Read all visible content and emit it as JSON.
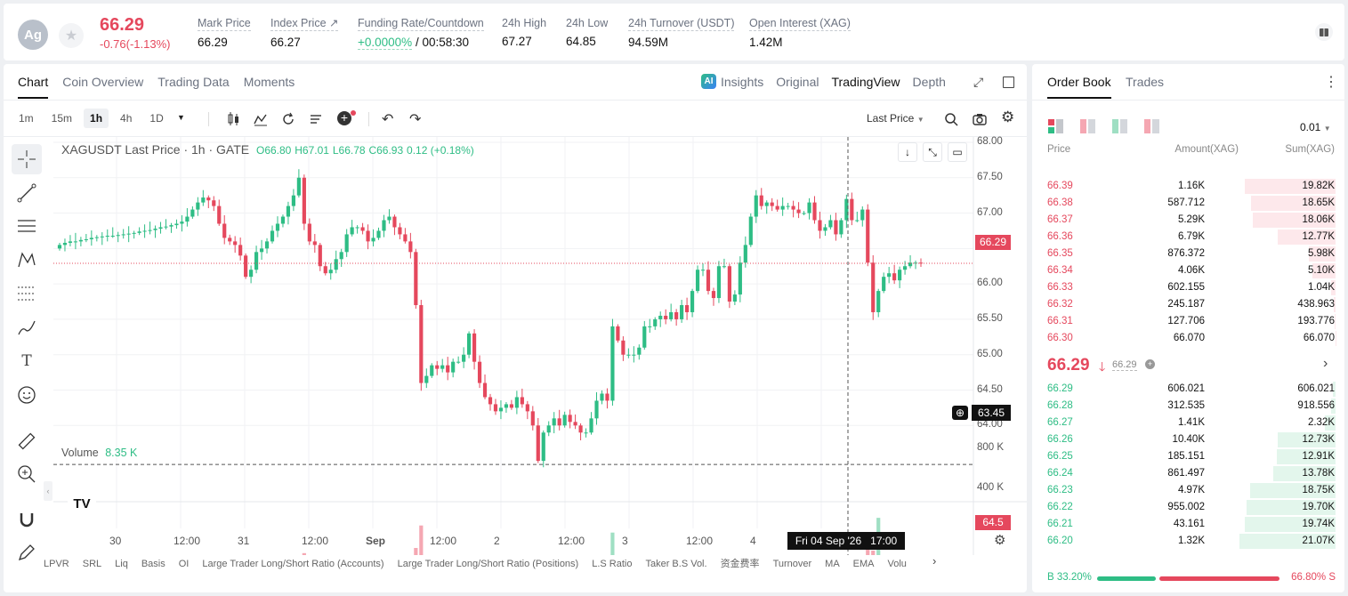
{
  "ticker": {
    "symbol_badge": "Ag",
    "price": "66.29",
    "change": "-0.76(-1.13%)"
  },
  "stats": [
    {
      "label": "Mark Price",
      "value": "66.29"
    },
    {
      "label": "Index Price ↗",
      "value": "66.27"
    },
    {
      "label": "Funding Rate/Countdown",
      "value_green": "+0.0000%",
      "value": "/ 00:58:30"
    },
    {
      "label": "24h High",
      "value": "67.27"
    },
    {
      "label": "24h Low",
      "value": "64.85"
    },
    {
      "label": "24h Turnover (USDT)",
      "value": "94.59M"
    },
    {
      "label": "Open Interest (XAG)",
      "value": "1.42M"
    }
  ],
  "chart_tabs": [
    "Chart",
    "Coin Overview",
    "Trading Data",
    "Moments"
  ],
  "view_tabs": [
    "Insights",
    "Original",
    "TradingView",
    "Depth"
  ],
  "timeframes": [
    "1m",
    "15m",
    "1h",
    "4h",
    "1D"
  ],
  "price_type": "Last Price",
  "legend": {
    "title": "XAGUSDT Last Price · 1h · GATE",
    "o": "O66.80",
    "h": "H67.01",
    "l": "L66.78",
    "c": "C66.93",
    "chg": "0.12 (+0.18%)"
  },
  "volume_legend": {
    "label": "Volume",
    "value": "8.35 K"
  },
  "price_tag": "66.29",
  "crosshair_tag": "63.45",
  "volume_tag": "64.5",
  "time_tag": "Fri 04 Sep '26   17:00",
  "y_labels": [
    "68.00",
    "67.50",
    "67.00",
    "66.50",
    "66.00",
    "65.50",
    "65.00",
    "64.50",
    "64.00"
  ],
  "vol_labels": [
    "800 K",
    "400 K"
  ],
  "x_labels": [
    "30",
    "12:00",
    "31",
    "12:00",
    "Sep",
    "12:00",
    "2",
    "12:00",
    "3",
    "12:00",
    "4",
    "12:00"
  ],
  "indicators": [
    "LPVR",
    "SRL",
    "Liq",
    "Basis",
    "OI",
    "Large Trader Long/Short Ratio (Accounts)",
    "Large Trader Long/Short Ratio (Positions)",
    "L.S Ratio",
    "Taker B.S Vol.",
    "资金费率",
    "Turnover",
    "MA",
    "EMA",
    "Volu"
  ],
  "chart_data": {
    "type": "candlestick",
    "series_close": [
      66.55,
      66.58,
      66.6,
      66.6,
      66.62,
      66.63,
      66.65,
      66.66,
      66.67,
      66.68,
      66.68,
      66.69,
      66.7,
      66.71,
      66.72,
      66.74,
      66.75,
      66.76,
      66.78,
      66.8,
      66.81,
      66.83,
      66.85,
      66.88,
      66.95,
      67.05,
      67.15,
      67.22,
      67.18,
      67.1,
      66.85,
      66.65,
      66.6,
      66.55,
      66.4,
      66.1,
      66.2,
      66.45,
      66.5,
      66.6,
      66.75,
      66.85,
      66.95,
      67.1,
      67.25,
      67.5,
      66.85,
      66.6,
      66.55,
      66.25,
      66.15,
      66.2,
      66.35,
      66.45,
      66.7,
      66.8,
      66.8,
      66.75,
      66.6,
      66.65,
      66.75,
      66.9,
      66.95,
      66.8,
      66.7,
      66.6,
      66.45,
      65.7,
      64.6,
      64.7,
      64.85,
      64.8,
      64.85,
      64.75,
      64.9,
      64.9,
      65.0,
      65.3,
      64.9,
      64.6,
      64.4,
      64.3,
      64.2,
      64.25,
      64.3,
      64.25,
      64.4,
      64.3,
      64.2,
      64.0,
      63.5,
      63.9,
      64.0,
      64.1,
      64.0,
      64.15,
      64.05,
      64.0,
      63.9,
      63.9,
      64.1,
      64.35,
      64.45,
      64.35,
      65.4,
      65.2,
      65.0,
      65.0,
      65.0,
      65.1,
      65.4,
      65.4,
      65.5,
      65.55,
      65.5,
      65.6,
      65.5,
      65.7,
      65.6,
      65.9,
      66.2,
      66.2,
      65.9,
      65.8,
      66.25,
      66.25,
      65.75,
      65.85,
      66.3,
      66.55,
      66.95,
      67.25,
      67.1,
      67.15,
      67.1,
      67.05,
      67.1,
      67.1,
      67.05,
      67.0,
      67.0,
      67.15,
      66.9,
      66.75,
      66.8,
      66.9,
      66.7,
      66.9,
      67.2,
      66.9,
      66.9,
      67.05,
      66.3,
      65.6,
      65.9,
      66.1,
      66.15,
      66.05,
      66.2,
      66.25,
      66.3,
      66.3,
      66.29
    ],
    "y_range": [
      63.3,
      68.05
    ],
    "volume_range": [
      0,
      880
    ]
  },
  "orderbook": {
    "tabs": [
      "Order Book",
      "Trades"
    ],
    "precision": "0.01",
    "cols": [
      "Price",
      "Amount(XAG)",
      "Sum(XAG)"
    ],
    "asks": [
      [
        "66.39",
        "1.16K",
        "19.82K"
      ],
      [
        "66.38",
        "587.712",
        "18.65K"
      ],
      [
        "66.37",
        "5.29K",
        "18.06K"
      ],
      [
        "66.36",
        "6.79K",
        "12.77K"
      ],
      [
        "66.35",
        "876.372",
        "5.98K"
      ],
      [
        "66.34",
        "4.06K",
        "5.10K"
      ],
      [
        "66.33",
        "602.155",
        "1.04K"
      ],
      [
        "66.32",
        "245.187",
        "438.963"
      ],
      [
        "66.31",
        "127.706",
        "193.776"
      ],
      [
        "66.30",
        "66.070",
        "66.070"
      ]
    ],
    "ask_depth": [
      0.94,
      0.88,
      0.86,
      0.6,
      0.28,
      0.24,
      0.05,
      0.021,
      0.009,
      0.003
    ],
    "mid_price": "66.29",
    "mark_price": "66.29",
    "bids": [
      [
        "66.29",
        "606.021",
        "606.021"
      ],
      [
        "66.28",
        "312.535",
        "918.556"
      ],
      [
        "66.27",
        "1.41K",
        "2.32K"
      ],
      [
        "66.26",
        "10.40K",
        "12.73K"
      ],
      [
        "66.25",
        "185.151",
        "12.91K"
      ],
      [
        "66.24",
        "861.497",
        "13.78K"
      ],
      [
        "66.23",
        "4.97K",
        "18.75K"
      ],
      [
        "66.22",
        "955.002",
        "19.70K"
      ],
      [
        "66.21",
        "43.161",
        "19.74K"
      ],
      [
        "66.20",
        "1.32K",
        "21.07K"
      ]
    ],
    "bid_depth": [
      0.029,
      0.044,
      0.11,
      0.6,
      0.61,
      0.65,
      0.89,
      0.93,
      0.94,
      1.0
    ],
    "buy_ratio": "B 33.20%",
    "sell_ratio": "66.80% S",
    "buy_fraction": 0.332
  }
}
